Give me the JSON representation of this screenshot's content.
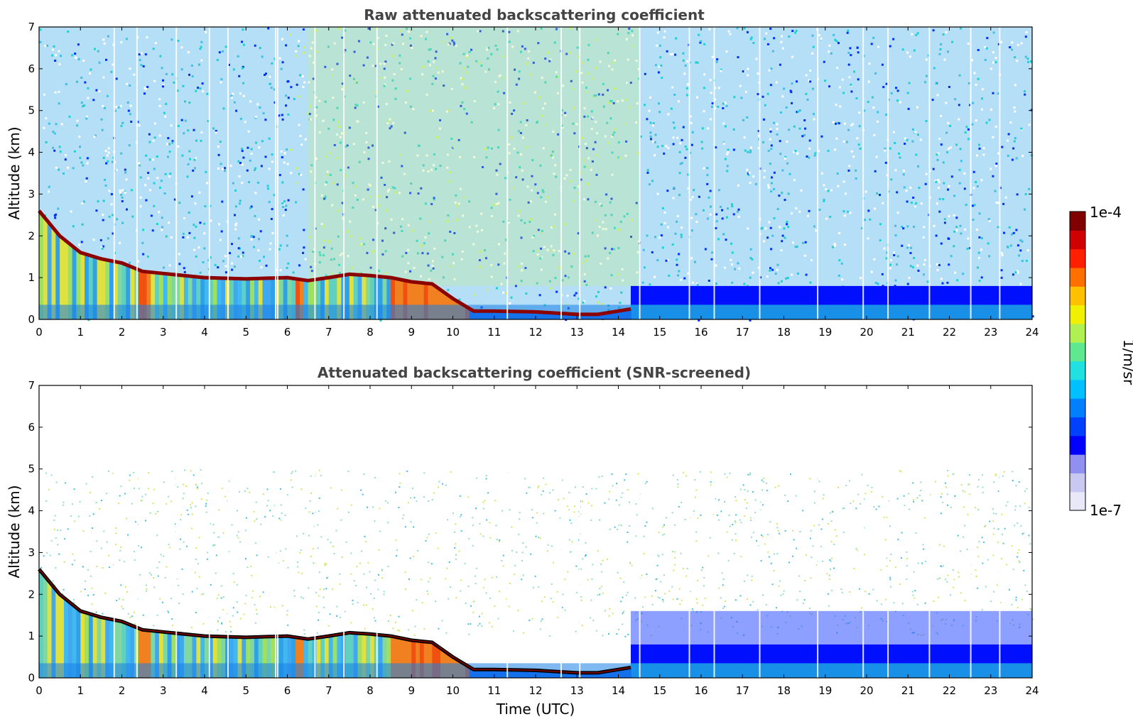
{
  "chart_data": [
    {
      "type": "heatmap",
      "title": "Raw attenuated backscattering coefficient",
      "xlabel": "",
      "ylabel": "Altitude (km)",
      "xlim": [
        0,
        24
      ],
      "ylim": [
        0,
        7
      ],
      "xticks": [
        0,
        1,
        2,
        3,
        4,
        5,
        6,
        7,
        8,
        9,
        10,
        11,
        12,
        13,
        14,
        15,
        16,
        17,
        18,
        19,
        20,
        21,
        22,
        23,
        24
      ],
      "yticks": [
        0,
        1,
        2,
        3,
        4,
        5,
        6,
        7
      ],
      "boundary_layer_top_km": [
        [
          0,
          2.6
        ],
        [
          0.5,
          2.0
        ],
        [
          1,
          1.6
        ],
        [
          1.5,
          1.45
        ],
        [
          2,
          1.35
        ],
        [
          2.5,
          1.15
        ],
        [
          3,
          1.1
        ],
        [
          4,
          1.0
        ],
        [
          5,
          0.97
        ],
        [
          6,
          1.0
        ],
        [
          6.5,
          0.93
        ],
        [
          7,
          1.0
        ],
        [
          7.5,
          1.08
        ],
        [
          8,
          1.05
        ],
        [
          8.5,
          1.0
        ],
        [
          9,
          0.9
        ],
        [
          9.5,
          0.85
        ],
        [
          10,
          0.5
        ],
        [
          10.5,
          0.2
        ],
        [
          11,
          0.2
        ],
        [
          12,
          0.18
        ],
        [
          13,
          0.12
        ],
        [
          13.5,
          0.12
        ],
        [
          14,
          0.2
        ],
        [
          14.3,
          0.25
        ]
      ]
    },
    {
      "type": "heatmap",
      "title": "Attenuated backscattering coefficient (SNR-screened)",
      "xlabel": "Time (UTC)",
      "ylabel": "Altitude (km)",
      "xlim": [
        0,
        24
      ],
      "ylim": [
        0,
        7
      ],
      "xticks": [
        0,
        1,
        2,
        3,
        4,
        5,
        6,
        7,
        8,
        9,
        10,
        11,
        12,
        13,
        14,
        15,
        16,
        17,
        18,
        19,
        20,
        21,
        22,
        23,
        24
      ],
      "yticks": [
        0,
        1,
        2,
        3,
        4,
        5,
        6,
        7
      ],
      "boundary_layer_top_km": [
        [
          0,
          2.6
        ],
        [
          0.5,
          2.0
        ],
        [
          1,
          1.6
        ],
        [
          1.5,
          1.45
        ],
        [
          2,
          1.35
        ],
        [
          2.5,
          1.15
        ],
        [
          3,
          1.1
        ],
        [
          4,
          1.0
        ],
        [
          5,
          0.97
        ],
        [
          6,
          1.0
        ],
        [
          6.5,
          0.93
        ],
        [
          7,
          1.0
        ],
        [
          7.5,
          1.08
        ],
        [
          8,
          1.05
        ],
        [
          8.5,
          1.0
        ],
        [
          9,
          0.9
        ],
        [
          9.5,
          0.85
        ],
        [
          10,
          0.5
        ],
        [
          10.5,
          0.2
        ],
        [
          11,
          0.2
        ],
        [
          12,
          0.18
        ],
        [
          13,
          0.12
        ],
        [
          13.5,
          0.12
        ],
        [
          14,
          0.2
        ],
        [
          14.3,
          0.25
        ]
      ]
    }
  ],
  "colorbar": {
    "max_label": "1e-4",
    "min_label": "1e-7",
    "unit_label": "1/m/sr",
    "colors": [
      "#e8e8f8",
      "#c8c8f0",
      "#9090f0",
      "#0000ff",
      "#0040ff",
      "#0080ff",
      "#00c0ff",
      "#20e0e0",
      "#60e890",
      "#b0f050",
      "#f0f000",
      "#ffc000",
      "#ff7000",
      "#ff2000",
      "#d00000",
      "#800000"
    ]
  }
}
